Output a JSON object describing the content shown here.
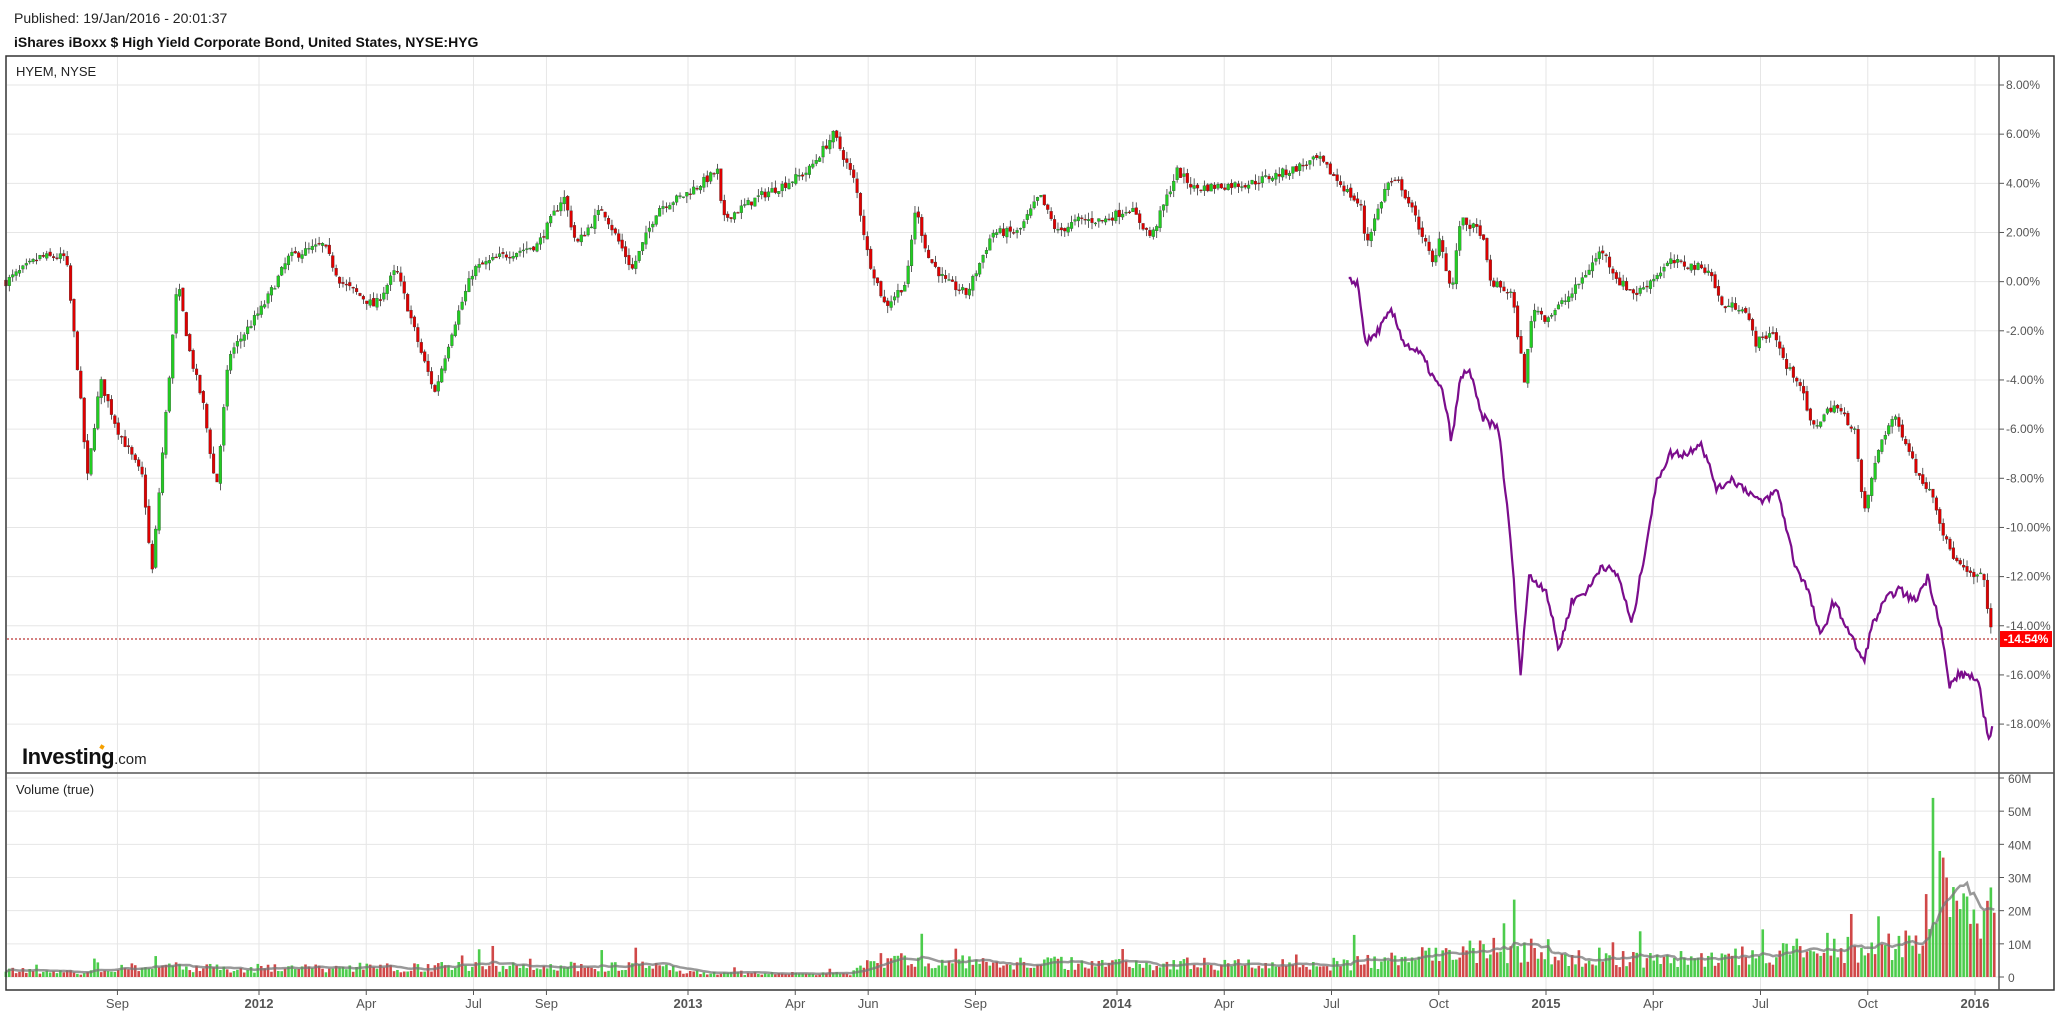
{
  "header": {
    "published": "Published: 19/Jan/2016 - 20:01:37",
    "title": "iShares iBoxx $ High Yield Corporate Bond, United States, NYSE:HYG"
  },
  "logo": {
    "main": "Investing",
    "suffix": ".com"
  },
  "chart_data": [
    {
      "type": "candlestick",
      "panel_label": "HYEM, NYSE",
      "series": [
        {
          "name": "HYG",
          "kind": "candlestick",
          "up_color": "#22cc22",
          "down_color": "#dd0000",
          "points": [
            [
              2011.41,
              0
            ],
            [
              2011.49,
              1
            ],
            [
              2011.55,
              1
            ],
            [
              2011.58,
              -4
            ],
            [
              2011.6,
              -8
            ],
            [
              2011.63,
              -4
            ],
            [
              2011.67,
              -6
            ],
            [
              2011.73,
              -8
            ],
            [
              2011.75,
              -12
            ],
            [
              2011.78,
              -6
            ],
            [
              2011.81,
              0
            ],
            [
              2011.84,
              -3
            ],
            [
              2011.87,
              -5
            ],
            [
              2011.9,
              -8.5
            ],
            [
              2011.93,
              -3
            ],
            [
              2012.01,
              -1
            ],
            [
              2012.07,
              1
            ],
            [
              2012.15,
              1.5
            ],
            [
              2012.19,
              0
            ],
            [
              2012.27,
              -1
            ],
            [
              2012.32,
              0.5
            ],
            [
              2012.38,
              -3
            ],
            [
              2012.41,
              -4.5
            ],
            [
              2012.45,
              -2
            ],
            [
              2012.5,
              0.5
            ],
            [
              2012.56,
              1
            ],
            [
              2012.65,
              1.5
            ],
            [
              2012.71,
              3.5
            ],
            [
              2012.74,
              1.5
            ],
            [
              2012.8,
              3
            ],
            [
              2012.87,
              0.5
            ],
            [
              2012.93,
              3
            ],
            [
              2012.99,
              3.5
            ],
            [
              2013.07,
              4.5
            ],
            [
              2013.08,
              2.5
            ],
            [
              2013.17,
              3.5
            ],
            [
              2013.23,
              4
            ],
            [
              2013.28,
              4.5
            ],
            [
              2013.34,
              6
            ],
            [
              2013.39,
              4
            ],
            [
              2013.42,
              1
            ],
            [
              2013.46,
              -1
            ],
            [
              2013.51,
              0
            ],
            [
              2013.53,
              3
            ],
            [
              2013.56,
              1
            ],
            [
              2013.6,
              0
            ],
            [
              2013.65,
              -0.5
            ],
            [
              2013.71,
              2
            ],
            [
              2013.77,
              2
            ],
            [
              2013.82,
              3.5
            ],
            [
              2013.86,
              2
            ],
            [
              2013.91,
              2.5
            ],
            [
              2013.97,
              2.5
            ],
            [
              2014.03,
              3
            ],
            [
              2014.08,
              1.8
            ],
            [
              2014.14,
              4.5
            ],
            [
              2014.18,
              3.8
            ],
            [
              2014.31,
              4
            ],
            [
              2014.4,
              4.5
            ],
            [
              2014.47,
              5
            ],
            [
              2014.52,
              4
            ],
            [
              2014.57,
              3
            ],
            [
              2014.58,
              1.5
            ],
            [
              2014.63,
              4
            ],
            [
              2014.66,
              4
            ],
            [
              2014.71,
              2
            ],
            [
              2014.74,
              0.5
            ],
            [
              2014.75,
              2
            ],
            [
              2014.78,
              -0.5
            ],
            [
              2014.8,
              2.5
            ],
            [
              2014.85,
              2
            ],
            [
              2014.87,
              0
            ],
            [
              2014.92,
              -0.5
            ],
            [
              2014.95,
              -4
            ],
            [
              2014.97,
              -1
            ],
            [
              2015.0,
              -1.5
            ],
            [
              2015.06,
              -0.5
            ],
            [
              2015.13,
              1.3
            ],
            [
              2015.17,
              0
            ],
            [
              2015.21,
              -0.5
            ],
            [
              2015.29,
              0.8
            ],
            [
              2015.38,
              0.5
            ],
            [
              2015.41,
              -1
            ],
            [
              2015.46,
              -1
            ],
            [
              2015.49,
              -2.5
            ],
            [
              2015.53,
              -2
            ],
            [
              2015.56,
              -3.5
            ],
            [
              2015.59,
              -4
            ],
            [
              2015.62,
              -6
            ],
            [
              2015.67,
              -5
            ],
            [
              2015.72,
              -6
            ],
            [
              2015.74,
              -9.5
            ],
            [
              2015.78,
              -6.5
            ],
            [
              2015.81,
              -5.5
            ],
            [
              2015.84,
              -6.5
            ],
            [
              2015.87,
              -8
            ],
            [
              2015.9,
              -8.5
            ],
            [
              2015.93,
              -10.5
            ],
            [
              2015.96,
              -11.5
            ],
            [
              2015.99,
              -12
            ],
            [
              2016.02,
              -12
            ],
            [
              2016.04,
              -14.54
            ]
          ]
        },
        {
          "name": "HYEM",
          "kind": "line",
          "color": "#7b0d8c",
          "points": [
            [
              2014.54,
              0
            ],
            [
              2014.56,
              0
            ],
            [
              2014.58,
              -2.5
            ],
            [
              2014.6,
              -2.2
            ],
            [
              2014.64,
              -1.2
            ],
            [
              2014.67,
              -2.5
            ],
            [
              2014.71,
              -3
            ],
            [
              2014.74,
              -4
            ],
            [
              2014.76,
              -4.5
            ],
            [
              2014.78,
              -6.5
            ],
            [
              2014.8,
              -4
            ],
            [
              2014.82,
              -3.5
            ],
            [
              2014.85,
              -5.5
            ],
            [
              2014.89,
              -6
            ],
            [
              2014.92,
              -11
            ],
            [
              2014.94,
              -16
            ],
            [
              2014.96,
              -12
            ],
            [
              2015.0,
              -12.5
            ],
            [
              2015.03,
              -15
            ],
            [
              2015.06,
              -13
            ],
            [
              2015.1,
              -12.5
            ],
            [
              2015.13,
              -11.5
            ],
            [
              2015.17,
              -12
            ],
            [
              2015.2,
              -14
            ],
            [
              2015.23,
              -11
            ],
            [
              2015.26,
              -8
            ],
            [
              2015.29,
              -7
            ],
            [
              2015.33,
              -7
            ],
            [
              2015.36,
              -6.5
            ],
            [
              2015.4,
              -8.5
            ],
            [
              2015.43,
              -8
            ],
            [
              2015.47,
              -8.5
            ],
            [
              2015.5,
              -9
            ],
            [
              2015.54,
              -8.5
            ],
            [
              2015.58,
              -11.5
            ],
            [
              2015.61,
              -12.5
            ],
            [
              2015.64,
              -14.5
            ],
            [
              2015.67,
              -13
            ],
            [
              2015.7,
              -14
            ],
            [
              2015.74,
              -15.5
            ],
            [
              2015.76,
              -14
            ],
            [
              2015.79,
              -13
            ],
            [
              2015.82,
              -12.5
            ],
            [
              2015.86,
              -13
            ],
            [
              2015.89,
              -12
            ],
            [
              2015.92,
              -14
            ],
            [
              2015.94,
              -16.5
            ],
            [
              2015.96,
              -16
            ],
            [
              2015.99,
              -16
            ],
            [
              2016.01,
              -16.5
            ],
            [
              2016.03,
              -18.5
            ],
            [
              2016.04,
              -18.2
            ]
          ]
        }
      ],
      "y_axis": {
        "ticks": [
          "8.00%",
          "6.00%",
          "4.00%",
          "2.00%",
          "0.00%",
          "-2.00%",
          "-4.00%",
          "-6.00%",
          "-8.00%",
          "-10.00%",
          "-12.00%",
          "-14.00%",
          "-16.00%",
          "-18.00%"
        ],
        "tick_values": [
          8,
          6,
          4,
          2,
          0,
          -2,
          -4,
          -6,
          -8,
          -10,
          -12,
          -14,
          -16,
          -18
        ],
        "ylim": [
          -19.5,
          9
        ]
      },
      "last_value": {
        "label": "-14.54%",
        "value": -14.54,
        "color": "#ff0000"
      },
      "x_axis": {
        "xlim": [
          2011.4,
          2016.1
        ]
      }
    },
    {
      "type": "bar",
      "panel_label": "Volume (true)",
      "unit": "M",
      "baseline_points": [
        [
          2011.41,
          2
        ],
        [
          2011.58,
          1.2
        ],
        [
          2011.7,
          3
        ],
        [
          2012.0,
          2.5
        ],
        [
          2012.5,
          3
        ],
        [
          2012.9,
          3
        ],
        [
          2013.05,
          1
        ],
        [
          2013.38,
          1
        ],
        [
          2013.45,
          5
        ],
        [
          2013.7,
          4
        ],
        [
          2014.0,
          4
        ],
        [
          2014.5,
          3.5
        ],
        [
          2014.75,
          6
        ],
        [
          2014.85,
          8
        ],
        [
          2015.0,
          7
        ],
        [
          2015.2,
          5
        ],
        [
          2015.5,
          6
        ],
        [
          2015.75,
          8
        ],
        [
          2015.85,
          9
        ],
        [
          2015.9,
          18
        ],
        [
          2016.0,
          16
        ],
        [
          2016.04,
          14
        ]
      ],
      "spikes": [
        [
          2015.905,
          54
        ],
        [
          2015.915,
          38
        ],
        [
          2015.925,
          36
        ],
        [
          2015.935,
          30
        ],
        [
          2015.89,
          25
        ],
        [
          2016.04,
          27
        ],
        [
          2015.955,
          23
        ],
        [
          2016.02,
          20
        ],
        [
          2015.71,
          19
        ]
      ],
      "up_color": "#4ccc4c",
      "down_color": "#d04848",
      "ma_color": "#777777",
      "y_axis": {
        "ticks": [
          "60M",
          "50M",
          "40M",
          "30M",
          "20M",
          "10M",
          "0"
        ],
        "tick_values": [
          60,
          50,
          40,
          30,
          20,
          10,
          0
        ],
        "ylim": [
          0,
          60
        ]
      }
    }
  ],
  "x_labels": [
    {
      "label": "Sep",
      "t": 2011.67,
      "bold": false
    },
    {
      "label": "2012",
      "t": 2012.0,
      "bold": true
    },
    {
      "label": "Apr",
      "t": 2012.25,
      "bold": false
    },
    {
      "label": "Jul",
      "t": 2012.5,
      "bold": false
    },
    {
      "label": "Sep",
      "t": 2012.67,
      "bold": false
    },
    {
      "label": "2013",
      "t": 2013.0,
      "bold": true
    },
    {
      "label": "Apr",
      "t": 2013.25,
      "bold": false
    },
    {
      "label": "Jun",
      "t": 2013.42,
      "bold": false
    },
    {
      "label": "Sep",
      "t": 2013.67,
      "bold": false
    },
    {
      "label": "2014",
      "t": 2014.0,
      "bold": true
    },
    {
      "label": "Apr",
      "t": 2014.25,
      "bold": false
    },
    {
      "label": "Jul",
      "t": 2014.5,
      "bold": false
    },
    {
      "label": "Oct",
      "t": 2014.75,
      "bold": false
    },
    {
      "label": "2015",
      "t": 2015.0,
      "bold": true
    },
    {
      "label": "Apr",
      "t": 2015.25,
      "bold": false
    },
    {
      "label": "Jul",
      "t": 2015.5,
      "bold": false
    },
    {
      "label": "Oct",
      "t": 2015.75,
      "bold": false
    },
    {
      "label": "2016",
      "t": 2016.0,
      "bold": true
    }
  ]
}
